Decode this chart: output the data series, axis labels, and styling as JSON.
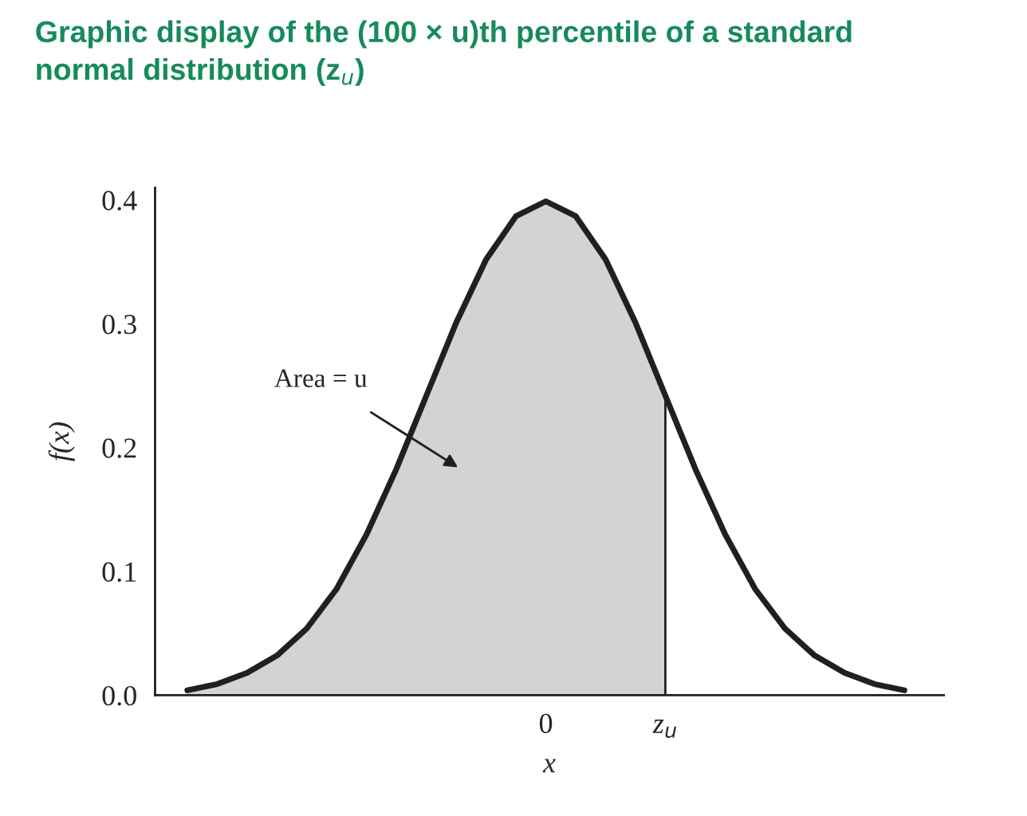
{
  "chart_data": {
    "type": "line",
    "title": "Graphic display of the (100 × u)th percentile of a standard\nnormal distribution (z$_{u}$)",
    "xlabel": "x",
    "ylabel": "f(x)",
    "categories": [
      null,
      null,
      null,
      null,
      null,
      null,
      null,
      null,
      null,
      null,
      null,
      null,
      "0",
      null,
      null,
      null,
      "z$_{u}$",
      null,
      null,
      null,
      null,
      null,
      null,
      null,
      null
    ],
    "series": [
      {
        "type": "area",
        "color": "#d1d3d4",
        "values": [
          0.004,
          0.009,
          0.018,
          0.032,
          0.054,
          0.086,
          0.13,
          0.183,
          0.242,
          0.301,
          0.352,
          0.387,
          0.399,
          0.387,
          0.352,
          0.301,
          0.242,
          null,
          null,
          null,
          null,
          null,
          null,
          null,
          null
        ]
      },
      {
        "color": "#231f20",
        "values": [
          0.004,
          0.009,
          0.018,
          0.032,
          0.054,
          0.086,
          0.13,
          0.183,
          0.242,
          0.301,
          0.352,
          0.387,
          0.399,
          0.387,
          0.352,
          0.301,
          0.242,
          0.183,
          0.13,
          0.086,
          0.054,
          0.032,
          0.018,
          0.009,
          0.004
        ]
      }
    ],
    "annotations": [
      "Area = u"
    ],
    "ylim": [
      0,
      0.41
    ],
    "yticks": [
      {
        "value": 0,
        "label": "0.0"
      },
      {
        "value": 0.1,
        "label": "0.1"
      },
      {
        "value": 0.2,
        "label": "0.2"
      },
      {
        "value": 0.3,
        "label": "0.3"
      },
      {
        "value": 0.4,
        "label": "0.4"
      }
    ],
    "line_style": "solid",
    "marker": "none"
  }
}
